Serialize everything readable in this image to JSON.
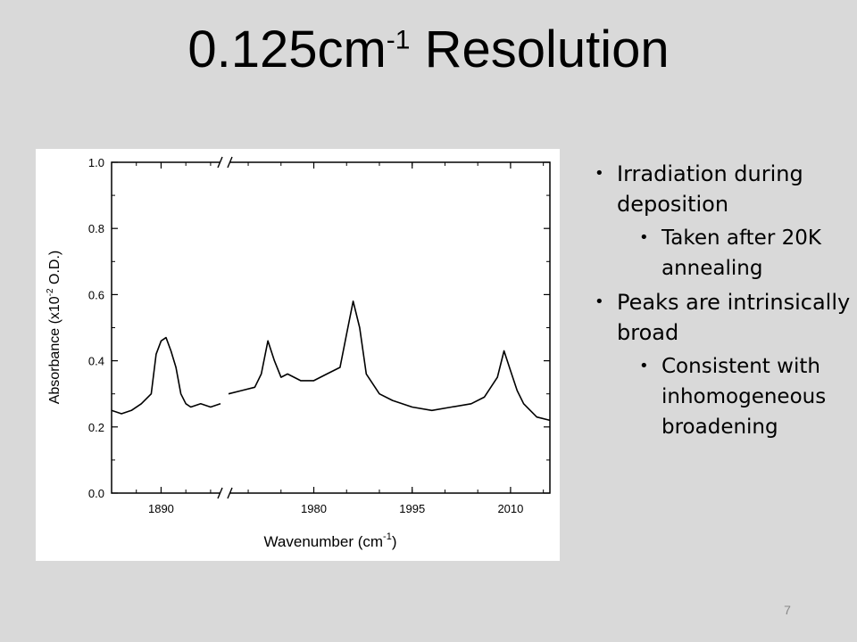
{
  "slide": {
    "title_main": "0.125cm",
    "title_sup": "-1",
    "title_rest": " Resolution",
    "page_number": "7"
  },
  "bullets": [
    {
      "level": 1,
      "text": "Irradiation during deposition"
    },
    {
      "level": 2,
      "text": "Taken after 20K annealing"
    },
    {
      "level": 1,
      "text": "Peaks are intrinsically broad"
    },
    {
      "level": 2,
      "text": "Consistent with inhomogeneous broadening"
    }
  ],
  "chart_data": {
    "type": "line",
    "xlabel": "Wavenumber (cm-1)",
    "xlabel_main": "Wavenumber (cm",
    "xlabel_sup": "-1",
    "xlabel_end": ")",
    "ylabel": "Absorbance (x10-2 O.D.)",
    "ylabel_main": "Absorbance (x10",
    "ylabel_sup": "-2",
    "ylabel_end": " O.D.)",
    "ylim": [
      0.0,
      1.0
    ],
    "yticks": [
      "0.0",
      "0.2",
      "0.4",
      "0.6",
      "0.8",
      "1.0"
    ],
    "axis_break": "between 1890 and 1980 segments",
    "line_color": "#000000",
    "grid": false,
    "segments": [
      {
        "xticks": [
          "1890"
        ],
        "x": [
          1880,
          1882,
          1884,
          1886,
          1888,
          1889,
          1890,
          1891,
          1892,
          1893,
          1894,
          1895,
          1896,
          1898,
          1900,
          1902
        ],
        "y": [
          0.25,
          0.24,
          0.25,
          0.27,
          0.3,
          0.42,
          0.46,
          0.47,
          0.43,
          0.38,
          0.3,
          0.27,
          0.26,
          0.27,
          0.26,
          0.27
        ]
      },
      {
        "xticks": [
          "1980",
          "1995",
          "2010"
        ],
        "x": [
          1967,
          1969,
          1971,
          1972,
          1973,
          1974,
          1975,
          1976,
          1978,
          1980,
          1982,
          1984,
          1985,
          1986,
          1987,
          1988,
          1990,
          1992,
          1995,
          1998,
          2001,
          2004,
          2006,
          2008,
          2009,
          2010,
          2011,
          2012,
          2013,
          2014,
          2016
        ],
        "y": [
          0.3,
          0.31,
          0.32,
          0.36,
          0.46,
          0.4,
          0.35,
          0.36,
          0.34,
          0.34,
          0.36,
          0.38,
          0.48,
          0.58,
          0.5,
          0.36,
          0.3,
          0.28,
          0.26,
          0.25,
          0.26,
          0.27,
          0.29,
          0.35,
          0.43,
          0.37,
          0.31,
          0.27,
          0.25,
          0.23,
          0.22
        ]
      }
    ]
  }
}
